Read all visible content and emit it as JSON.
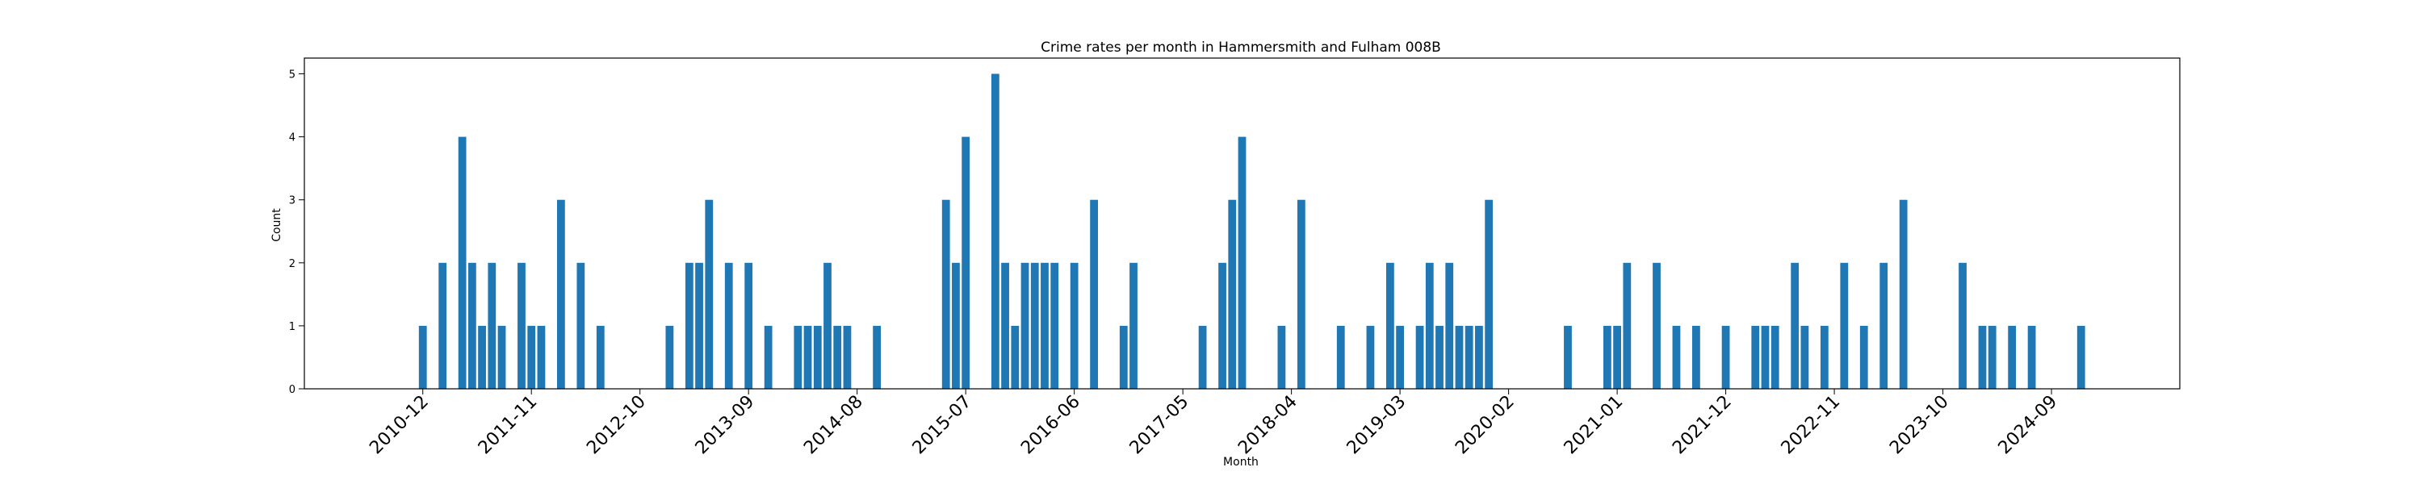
{
  "chart_data": {
    "type": "bar",
    "title": "Crime rates per month in Hammersmith and Fulham 008B",
    "xlabel": "Month",
    "ylabel": "Count",
    "ylim": [
      0,
      5.25
    ],
    "yticks": [
      0,
      1,
      2,
      3,
      4,
      5
    ],
    "xlim_months": [
      "2009-12",
      "2025-10"
    ],
    "xticks": [
      "2010-12",
      "2011-11",
      "2012-10",
      "2013-09",
      "2014-08",
      "2015-07",
      "2016-06",
      "2017-05",
      "2018-04",
      "2019-03",
      "2020-02",
      "2021-01",
      "2021-12",
      "2022-11",
      "2023-10",
      "2024-09"
    ],
    "grid": false,
    "color": "#1f77b4",
    "months": [
      "2010-12",
      "2011-02",
      "2011-04",
      "2011-05",
      "2011-06",
      "2011-07",
      "2011-08",
      "2011-10",
      "2011-11",
      "2011-12",
      "2012-02",
      "2012-04",
      "2012-06",
      "2013-01",
      "2013-03",
      "2013-04",
      "2013-05",
      "2013-07",
      "2013-09",
      "2013-11",
      "2014-02",
      "2014-03",
      "2014-04",
      "2014-05",
      "2014-06",
      "2014-07",
      "2014-10",
      "2015-05",
      "2015-06",
      "2015-07",
      "2015-10",
      "2015-11",
      "2015-12",
      "2016-01",
      "2016-02",
      "2016-03",
      "2016-04",
      "2016-06",
      "2016-08",
      "2016-11",
      "2016-12",
      "2017-07",
      "2017-09",
      "2017-10",
      "2017-11",
      "2018-03",
      "2018-05",
      "2018-09",
      "2018-12",
      "2019-02",
      "2019-03",
      "2019-05",
      "2019-06",
      "2019-07",
      "2019-08",
      "2019-09",
      "2019-10",
      "2019-11",
      "2019-12",
      "2020-08",
      "2020-12",
      "2021-01",
      "2021-02",
      "2021-05",
      "2021-07",
      "2021-09",
      "2021-12",
      "2022-03",
      "2022-04",
      "2022-05",
      "2022-07",
      "2022-08",
      "2022-10",
      "2022-12",
      "2023-02",
      "2023-04",
      "2023-06",
      "2023-12",
      "2024-02",
      "2024-03",
      "2024-05",
      "2024-07",
      "2024-12"
    ],
    "values": [
      1,
      2,
      4,
      2,
      1,
      2,
      1,
      2,
      1,
      1,
      3,
      2,
      1,
      1,
      2,
      2,
      3,
      2,
      2,
      1,
      1,
      1,
      1,
      2,
      1,
      1,
      1,
      3,
      2,
      4,
      5,
      2,
      1,
      2,
      2,
      2,
      2,
      2,
      3,
      1,
      2,
      1,
      2,
      3,
      4,
      1,
      3,
      1,
      1,
      2,
      1,
      1,
      2,
      1,
      2,
      1,
      1,
      1,
      3,
      1,
      1,
      1,
      2,
      2,
      1,
      1,
      1,
      1,
      1,
      1,
      2,
      1,
      1,
      2,
      1,
      2,
      3,
      2,
      1,
      1,
      1,
      1,
      1
    ]
  }
}
